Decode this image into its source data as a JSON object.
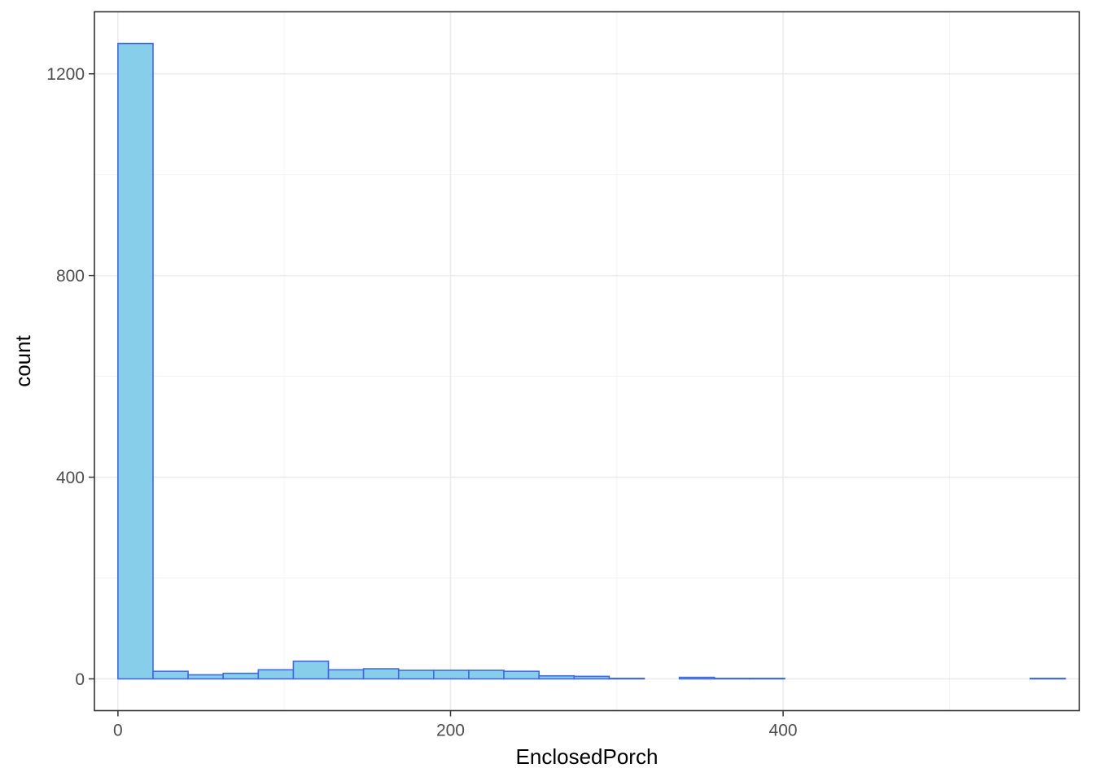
{
  "chart_data": {
    "type": "histogram",
    "title": "",
    "xlabel": "EnclosedPorch",
    "ylabel": "count",
    "xlim": [
      -14.14,
      578.14
    ],
    "ylim": [
      -63,
      1323
    ],
    "x_ticks": [
      0,
      200,
      400
    ],
    "y_ticks": [
      0,
      400,
      800,
      1200
    ],
    "x_tick_labels": [
      "0",
      "200",
      "400"
    ],
    "y_tick_labels": [
      "0",
      "400",
      "800",
      "1200"
    ],
    "bin_width": 21.1,
    "bins_start": 0,
    "counts": [
      1260,
      15,
      8,
      11,
      18,
      35,
      18,
      20,
      17,
      17,
      17,
      15,
      6,
      5,
      1,
      0,
      3,
      1,
      1,
      0,
      0,
      0,
      0,
      0,
      0,
      0,
      1
    ],
    "fill_color": "#87ceeb",
    "outline_color": "#4169e1",
    "grid": true,
    "theme": "bw"
  }
}
